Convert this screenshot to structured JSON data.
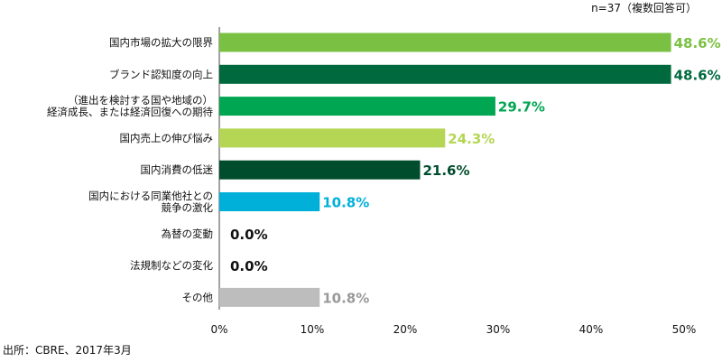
{
  "notes": {
    "sample": "n=37（複数回答可）",
    "source": "出所：CBRE、2017年3月"
  },
  "chart_data": {
    "type": "bar",
    "orientation": "horizontal",
    "categories": [
      "国内市場の拡大の限界",
      "ブランド認知度の向上",
      "（進出を検討する国や地域の）\n経済成長、または経済回復への期待",
      "国内売上の伸び悩み",
      "国内消費の低迷",
      "国内における同業他社との\n競争の激化",
      "為替の変動",
      "法規制などの変化",
      "その他"
    ],
    "values": [
      48.6,
      48.6,
      29.7,
      24.3,
      21.6,
      10.8,
      0.0,
      0.0,
      10.8
    ],
    "value_labels": [
      "48.6%",
      "48.6%",
      "29.7%",
      "24.3%",
      "21.6%",
      "10.8%",
      "0.0%",
      "0.0%",
      "10.8%"
    ],
    "colors": [
      "#7ac143",
      "#00693e",
      "#00a651",
      "#b5d654",
      "#004d2e",
      "#00b0d9",
      "#111111",
      "#111111",
      "#bdbdbd"
    ],
    "label_colors": [
      "#7ac143",
      "#00693e",
      "#00a651",
      "#b5d654",
      "#004d2e",
      "#00b0d9",
      "#111111",
      "#111111",
      "#999999"
    ],
    "xlim": [
      0,
      50
    ],
    "xticks": [
      0,
      10,
      20,
      30,
      40,
      50
    ],
    "xtick_labels": [
      "0%",
      "10%",
      "20%",
      "30%",
      "40%",
      "50%"
    ],
    "grid": false,
    "legend": "none"
  }
}
